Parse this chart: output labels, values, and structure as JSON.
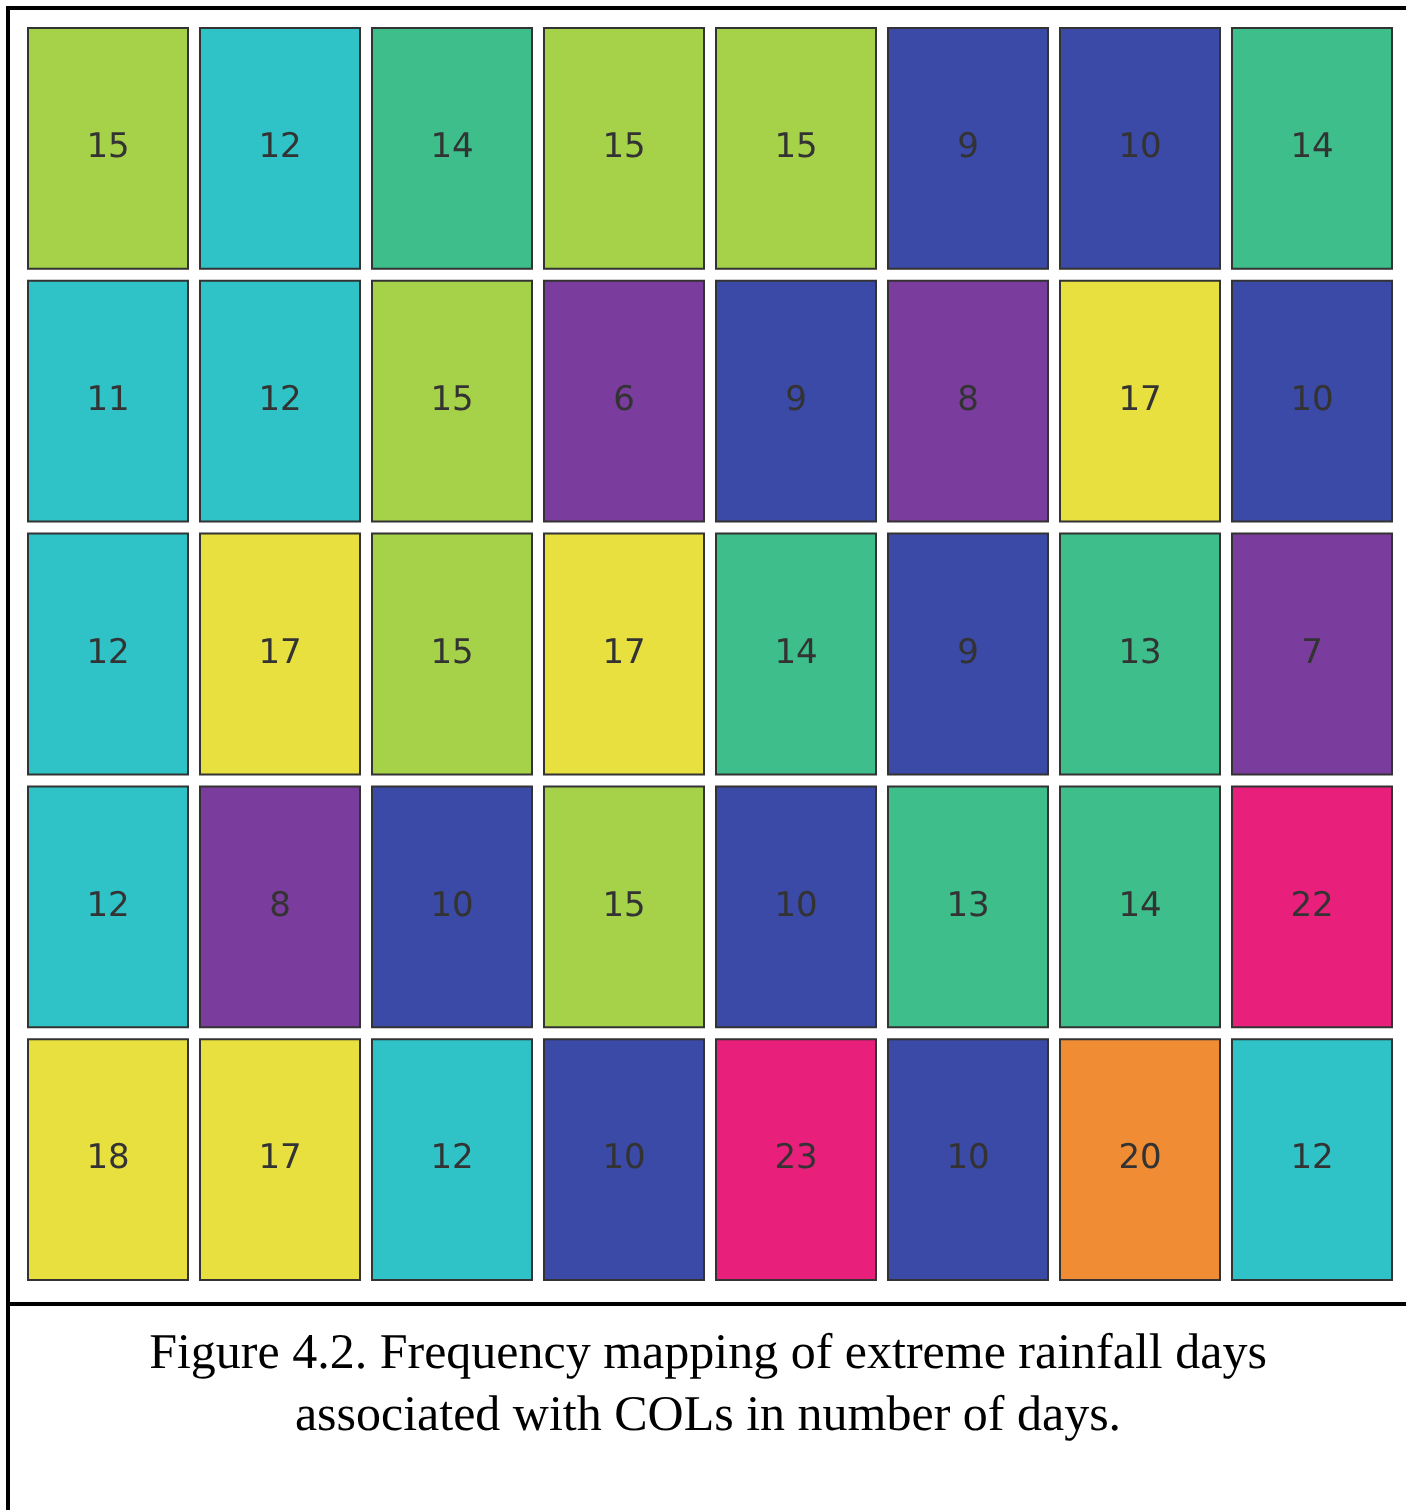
{
  "chart_data": {
    "type": "heatmap",
    "categories": [
      null,
      null,
      null,
      null,
      null,
      null,
      null,
      null
    ],
    "y_categories": [
      null,
      null,
      null,
      null,
      null
    ],
    "cells": [
      [
        15,
        12,
        14,
        15,
        15,
        9,
        10,
        14
      ],
      [
        11,
        12,
        15,
        6,
        9,
        8,
        17,
        10
      ],
      [
        12,
        17,
        15,
        17,
        14,
        9,
        13,
        7
      ],
      [
        12,
        8,
        10,
        15,
        10,
        13,
        14,
        22
      ],
      [
        18,
        17,
        12,
        10,
        23,
        10,
        20,
        12
      ]
    ],
    "data_labels": true,
    "annotations": [
      "Figure 4.2. Frequency mapping of extreme rainfall days associated with COLs in number of days."
    ]
  }
}
